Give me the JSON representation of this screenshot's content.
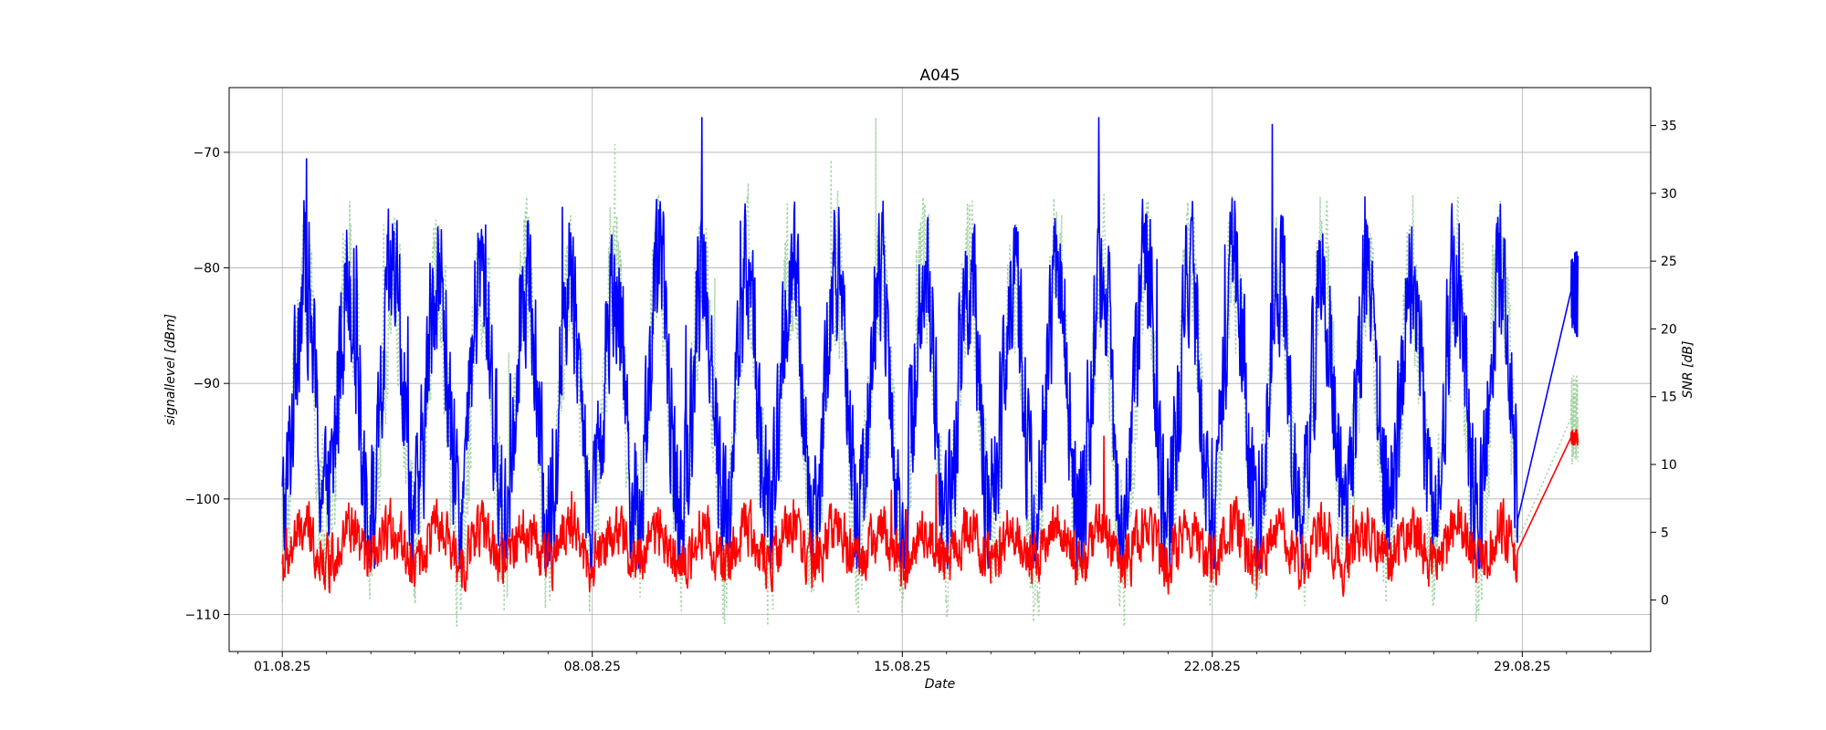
{
  "chart_data": {
    "type": "line",
    "title": "A045",
    "xlabel": "Date",
    "ylabel_left": "signallevel [dBm]",
    "ylabel_right": "SNR [dB]",
    "grid": true,
    "x_range_days": [
      -1.2,
      30.9
    ],
    "x_ticks": [
      {
        "day": 0,
        "label": "01.08.25"
      },
      {
        "day": 7,
        "label": "08.08.25"
      },
      {
        "day": 14,
        "label": "15.08.25"
      },
      {
        "day": 21,
        "label": "22.08.25"
      },
      {
        "day": 28,
        "label": "29.08.25"
      }
    ],
    "ylim_left": [
      -113.2,
      -64.4
    ],
    "yticks_left": [
      -110,
      -100,
      -90,
      -80,
      -70
    ],
    "ylim_right": [
      -3.8,
      37.8
    ],
    "yticks_right": [
      0,
      5,
      10,
      15,
      20,
      25,
      30,
      35
    ],
    "series": [
      {
        "name": "signallevel",
        "axis": "left",
        "color": "#0000ff",
        "style": "solid",
        "base": -91,
        "amplitude": 10.5,
        "range": [
          -106,
          -67
        ]
      },
      {
        "name": "signallevel (secondary)",
        "axis": "left",
        "color": "#a4d4a4",
        "style": "dotted",
        "base": -92,
        "amplitude": 12,
        "range": [
          -111,
          -67
        ]
      },
      {
        "name": "SNR",
        "axis": "right",
        "color": "#ff0000",
        "style": "solid",
        "base": 4,
        "amplitude": 2.5,
        "range": [
          -2.5,
          13
        ]
      }
    ]
  }
}
